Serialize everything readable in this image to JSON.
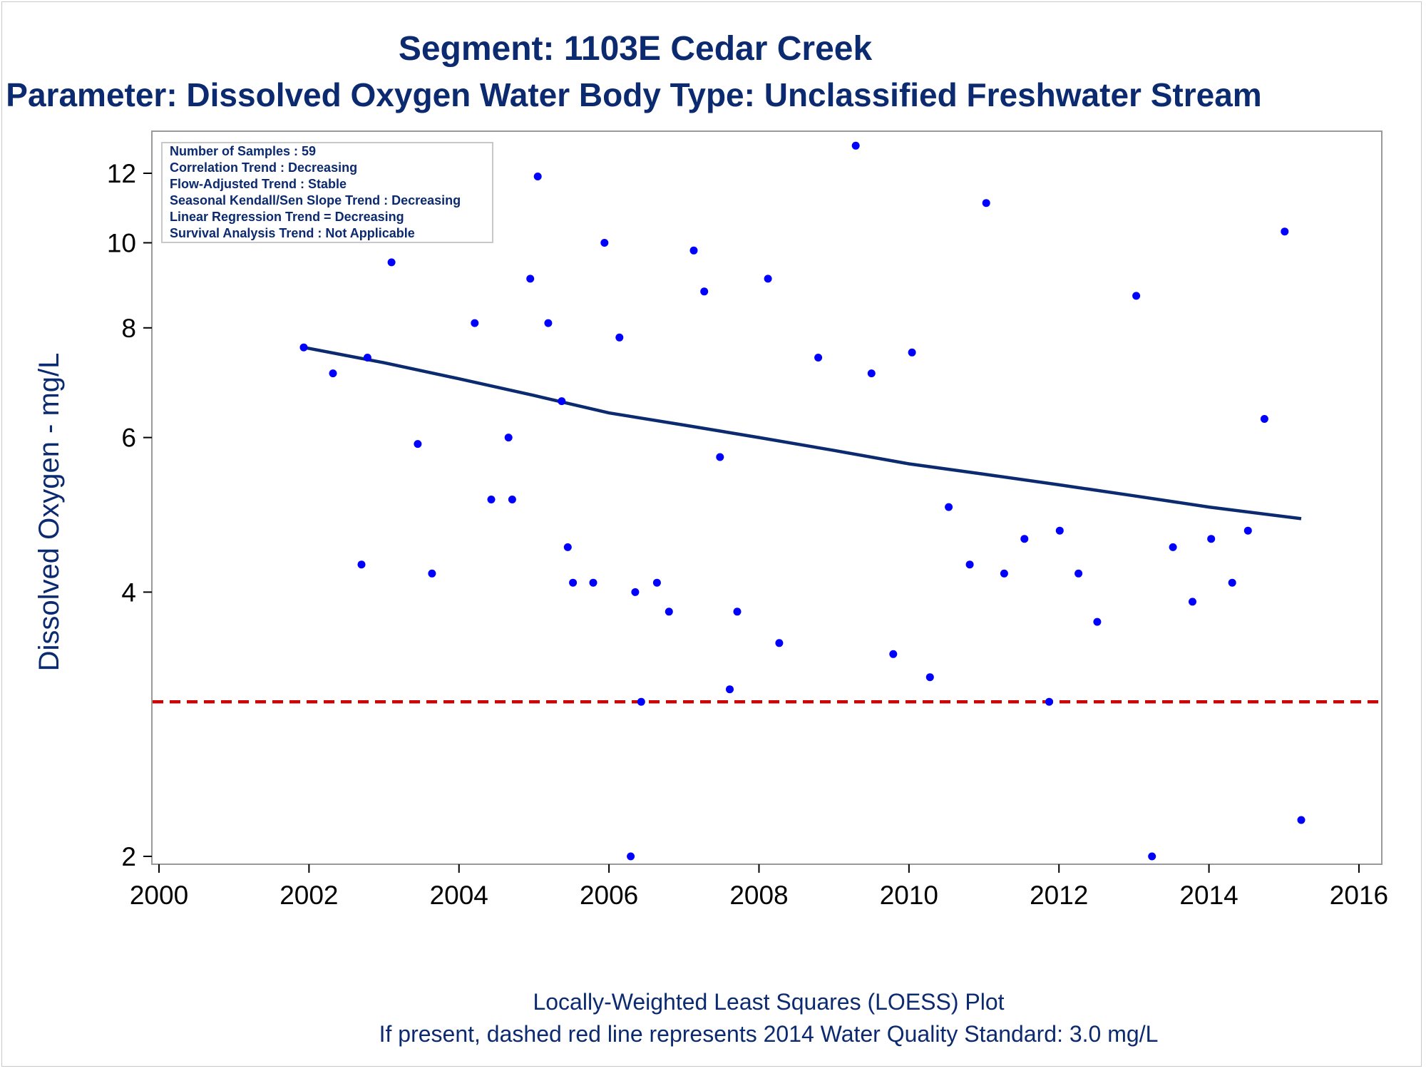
{
  "titles": {
    "line1": "Segment: 1103E  Cedar Creek",
    "line2": "Parameter: Dissolved Oxygen   Water Body Type: Unclassified Freshwater Stream"
  },
  "info_box": [
    "Number of Samples : 59",
    "Correlation Trend : Decreasing",
    "Flow-Adjusted Trend : Stable",
    "Seasonal Kendall/Sen Slope Trend : Decreasing",
    "Linear Regression Trend = Decreasing",
    "Survival Analysis Trend : Not Applicable"
  ],
  "footnotes": {
    "line1": "Locally-Weighted Least Squares (LOESS) Plot",
    "line2": "If present, dashed red line represents 2014 Water Quality Standard: 3.0 mg/L"
  },
  "chart_data": {
    "type": "scatter",
    "ylabel": "Dissolved Oxygen - mg/L",
    "xlabel": "",
    "y_scale": "log",
    "xlim": [
      2000,
      2016.2
    ],
    "ylim": [
      1.95,
      13.0
    ],
    "x_ticks": [
      2000,
      2002,
      2004,
      2006,
      2008,
      2010,
      2012,
      2014,
      2016
    ],
    "y_ticks": [
      2,
      4,
      6,
      8,
      10,
      12
    ],
    "grid": false,
    "legend": "none",
    "colors": {
      "points": "#0000ff",
      "trend": "#0b2a6f",
      "standard": "#cc0000",
      "text": "#0b2a6f"
    },
    "points": [
      [
        2001.93,
        7.6
      ],
      [
        2002.13,
        11.4
      ],
      [
        2002.32,
        7.1
      ],
      [
        2002.7,
        4.3
      ],
      [
        2002.78,
        7.4
      ],
      [
        2002.96,
        11.3
      ],
      [
        2003.1,
        9.5
      ],
      [
        2003.45,
        5.9
      ],
      [
        2003.64,
        4.2
      ],
      [
        2004.21,
        8.1
      ],
      [
        2004.43,
        5.1
      ],
      [
        2004.66,
        6.0
      ],
      [
        2004.71,
        5.1
      ],
      [
        2004.95,
        9.1
      ],
      [
        2005.05,
        11.9
      ],
      [
        2005.19,
        8.1
      ],
      [
        2005.37,
        6.6
      ],
      [
        2005.45,
        4.5
      ],
      [
        2005.52,
        4.1
      ],
      [
        2005.79,
        4.1
      ],
      [
        2005.94,
        10.0
      ],
      [
        2006.14,
        7.8
      ],
      [
        2006.29,
        2.0
      ],
      [
        2006.35,
        4.0
      ],
      [
        2006.43,
        3.0
      ],
      [
        2006.64,
        4.1
      ],
      [
        2006.8,
        3.8
      ],
      [
        2007.13,
        9.8
      ],
      [
        2007.27,
        8.8
      ],
      [
        2007.48,
        5.7
      ],
      [
        2007.61,
        3.1
      ],
      [
        2007.71,
        3.8
      ],
      [
        2008.12,
        9.1
      ],
      [
        2008.27,
        3.5
      ],
      [
        2008.79,
        7.4
      ],
      [
        2009.29,
        12.9
      ],
      [
        2009.5,
        7.1
      ],
      [
        2009.79,
        3.4
      ],
      [
        2010.04,
        7.5
      ],
      [
        2010.28,
        3.2
      ],
      [
        2010.53,
        5.0
      ],
      [
        2010.81,
        4.3
      ],
      [
        2011.03,
        11.1
      ],
      [
        2011.27,
        4.2
      ],
      [
        2011.54,
        4.6
      ],
      [
        2011.87,
        3.0
      ],
      [
        2012.01,
        4.7
      ],
      [
        2012.26,
        4.2
      ],
      [
        2012.51,
        3.7
      ],
      [
        2013.03,
        8.7
      ],
      [
        2013.24,
        2.0
      ],
      [
        2013.52,
        4.5
      ],
      [
        2013.78,
        3.9
      ],
      [
        2014.03,
        4.6
      ],
      [
        2014.31,
        4.1
      ],
      [
        2014.52,
        4.7
      ],
      [
        2014.74,
        6.3
      ],
      [
        2015.01,
        10.3
      ],
      [
        2015.23,
        2.2
      ]
    ],
    "loess_line": [
      [
        2001.93,
        7.6
      ],
      [
        2003.0,
        7.3
      ],
      [
        2004.0,
        7.0
      ],
      [
        2005.0,
        6.7
      ],
      [
        2006.0,
        6.4
      ],
      [
        2007.0,
        6.2
      ],
      [
        2008.0,
        6.0
      ],
      [
        2009.0,
        5.8
      ],
      [
        2010.0,
        5.6
      ],
      [
        2011.0,
        5.45
      ],
      [
        2012.0,
        5.3
      ],
      [
        2013.0,
        5.15
      ],
      [
        2014.0,
        5.0
      ],
      [
        2015.23,
        4.85
      ]
    ],
    "standard_line": 3.0
  }
}
